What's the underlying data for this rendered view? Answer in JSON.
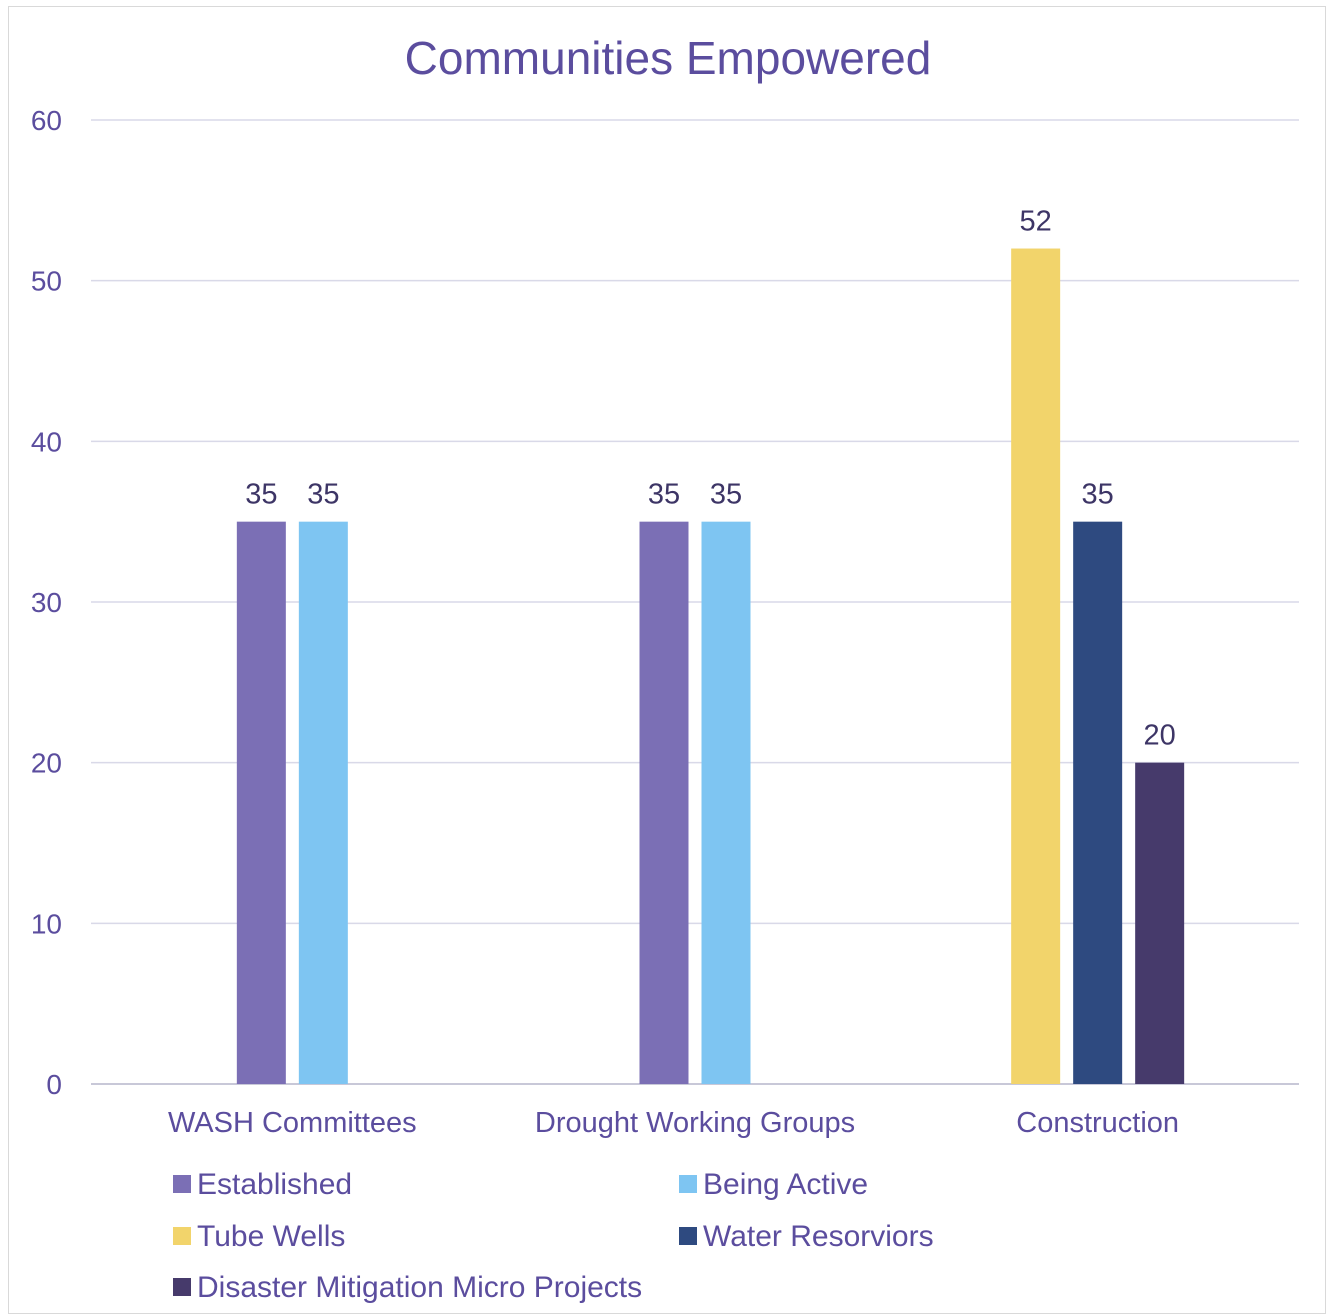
{
  "chart_data": {
    "type": "bar",
    "title": "Communities Empowered",
    "xlabel": "",
    "ylabel": "",
    "ylim": [
      0,
      60
    ],
    "yticks": [
      0,
      10,
      20,
      30,
      40,
      50,
      60
    ],
    "grid": true,
    "legend_position": "bottom",
    "categories": [
      "WASH Committees",
      "Drought Working Groups",
      "Construction"
    ],
    "series": [
      {
        "name": "Established",
        "color": "#7b6fb5",
        "values": [
          35,
          35,
          null
        ]
      },
      {
        "name": "Being Active",
        "color": "#7ec5f2",
        "values": [
          35,
          35,
          null
        ]
      },
      {
        "name": "Tube Wells",
        "color": "#f2d46b",
        "values": [
          null,
          null,
          52
        ]
      },
      {
        "name": "Water Resorviors",
        "color": "#2e4a80",
        "values": [
          null,
          null,
          35
        ]
      },
      {
        "name": "Disaster Mitigation Micro Projects",
        "color": "#463a6b",
        "values": [
          null,
          null,
          20
        ]
      }
    ]
  }
}
